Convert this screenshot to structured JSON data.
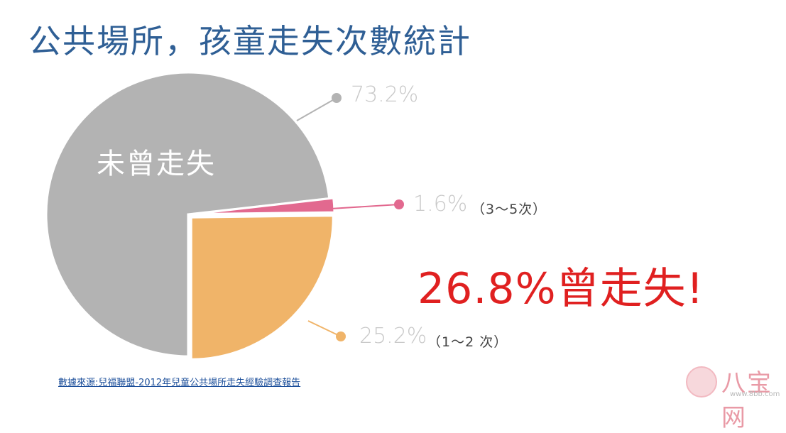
{
  "title": "公共場所，孩童走失次數統計",
  "center_label": "未曾走失",
  "headline": "26.8%曾走失!",
  "source": "數據來源:兒福聯盟-2012年兒童公共場所走失經驗調查報告",
  "watermark": {
    "text": "八宝网",
    "url": "www.8bb.com"
  },
  "chart_data": {
    "type": "pie",
    "title": "公共場所，孩童走失次數統計",
    "slices": [
      {
        "label": "未曾走失",
        "value": 73.2,
        "display": "73.2%",
        "note": "",
        "color": "#b3b3b3"
      },
      {
        "label": "3～5次",
        "value": 1.6,
        "display": "1.6%",
        "note": "（3～5次）",
        "color": "#e2698f"
      },
      {
        "label": "1～2次",
        "value": 25.2,
        "display": "25.2%",
        "note": "（1～2 次）",
        "color": "#f0b469"
      }
    ],
    "legend": "none"
  }
}
